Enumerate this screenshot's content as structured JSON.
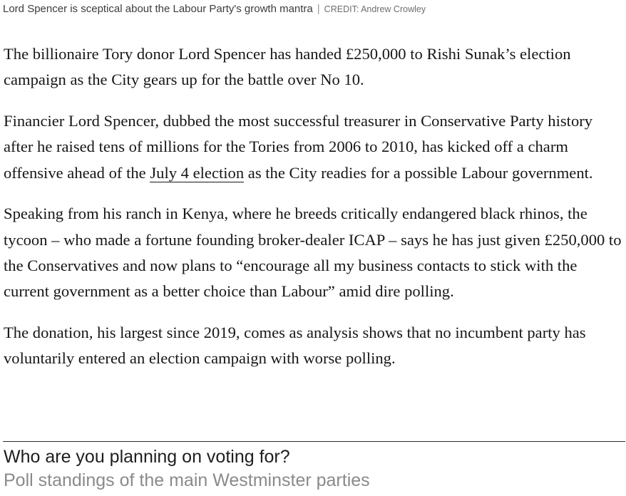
{
  "caption": {
    "text": "Lord Spencer is sceptical about the Labour Party's growth mantra",
    "separator": "|",
    "credit": "CREDIT: Andrew Crowley"
  },
  "article": {
    "p1": "The billionaire Tory donor Lord Spencer has handed £250,000 to Rishi Sunak’s election campaign as the City gears up for the battle over No 10.",
    "p2_before": "Financier Lord Spencer, dubbed the most successful treasurer in Conservative Party history after he raised tens of millions for the Tories from 2006 to 2010, has kicked off a charm offensive ahead of the ",
    "p2_link": "July 4 election",
    "p2_after": " as the City readies for a possible Labour government.",
    "p3": "Speaking from his ranch in Kenya, where he breeds critically endangered black rhinos, the tycoon – who made a fortune founding broker-dealer ICAP – says he has just given £250,000 to the Conservatives and now plans to “encourage all my business contacts to stick with the current government as a better choice than Labour” amid dire polling.",
    "p4": "The donation, his largest since 2019, comes as analysis shows that no incumbent party has voluntarily entered an election campaign with worse polling."
  },
  "poll": {
    "title": "Who are you planning on voting for?",
    "subtitle": "Poll standings of the main Westminster parties"
  }
}
